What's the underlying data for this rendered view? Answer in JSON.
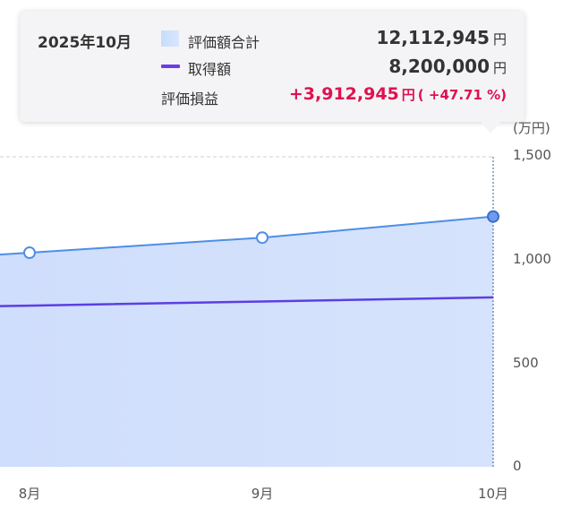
{
  "tooltip": {
    "date": "2025年10月",
    "rows": [
      {
        "label": "評価額合計",
        "value": "12,112,945",
        "unit": "円"
      },
      {
        "label": "取得額",
        "value": "8,200,000",
        "unit": "円"
      }
    ],
    "gain": {
      "label": "評価損益",
      "value": "+3,912,945",
      "unit": "円",
      "pct": "( +47.71 %)"
    }
  },
  "colors": {
    "area_fill": "#d4e2fb",
    "value_line": "#4d8ee8",
    "cost_line": "#5b3fe3",
    "gain": "#e0104f",
    "grid": "#cfcfcf",
    "tooltip_bg": "#f4f4f6"
  },
  "chart_data": {
    "type": "area",
    "unit_label": "(万円)",
    "categories": [
      "8月",
      "9月",
      "10月"
    ],
    "ylim": [
      0,
      1500
    ],
    "yticks": [
      "1,500",
      "1,000",
      "500",
      "0"
    ],
    "ytick_values": [
      1500,
      1000,
      500,
      0
    ],
    "grid": true,
    "series": [
      {
        "name": "評価額合計",
        "kind": "area",
        "values": [
          1036,
          1109,
          1211
        ]
      },
      {
        "name": "取得額",
        "kind": "line",
        "values": [
          780,
          800,
          820
        ]
      }
    ],
    "highlight": "10月"
  }
}
